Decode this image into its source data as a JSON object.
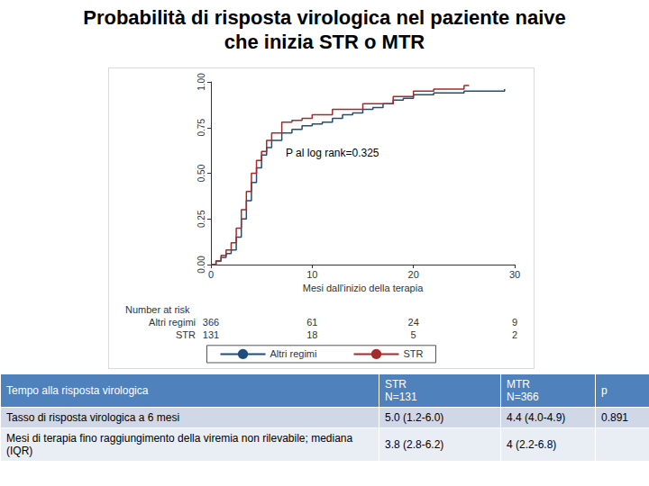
{
  "title": [
    "Probabilità di risposta virologica nel paziente naive",
    "che inizia STR o MTR"
  ],
  "chart_data": {
    "type": "step",
    "x_label": "Mesi dall'inizio della terapia",
    "xlim": [
      0,
      30
    ],
    "xticks": [
      0,
      10,
      20,
      30
    ],
    "ylim": [
      0,
      1
    ],
    "yticks": [
      {
        "value": 0,
        "label": "0.00"
      },
      {
        "value": 0.25,
        "label": "0.25"
      },
      {
        "value": 0.5,
        "label": "0.50"
      },
      {
        "value": 0.75,
        "label": "0.75"
      },
      {
        "value": 1,
        "label": "1.00"
      }
    ],
    "grid": false,
    "legend": "bottom",
    "annotation": "P al log rank=0.325",
    "series": [
      {
        "name": "Altri regimi",
        "color": "#1f4e79",
        "x": [
          0,
          0.5,
          1,
          1.5,
          2,
          2.5,
          3,
          3.5,
          4,
          4.5,
          5,
          5.5,
          6,
          7,
          8,
          9,
          10,
          11,
          12,
          13,
          14,
          15,
          16,
          17,
          18,
          19,
          20,
          22,
          25,
          29
        ],
        "values": [
          0,
          0.02,
          0.04,
          0.06,
          0.08,
          0.15,
          0.25,
          0.35,
          0.45,
          0.53,
          0.6,
          0.64,
          0.68,
          0.72,
          0.74,
          0.76,
          0.77,
          0.78,
          0.8,
          0.82,
          0.83,
          0.85,
          0.86,
          0.88,
          0.9,
          0.91,
          0.93,
          0.94,
          0.95,
          0.96
        ]
      },
      {
        "name": "STR",
        "color": "#a52a2a",
        "x": [
          0,
          0.5,
          1,
          1.5,
          2,
          2.5,
          3,
          3.5,
          4,
          4.5,
          5,
          5.5,
          6,
          7,
          8,
          9,
          10,
          12,
          15,
          18,
          20,
          22,
          25,
          25.5
        ],
        "values": [
          0,
          0.02,
          0.05,
          0.08,
          0.12,
          0.2,
          0.3,
          0.4,
          0.5,
          0.57,
          0.62,
          0.68,
          0.72,
          0.78,
          0.79,
          0.8,
          0.82,
          0.85,
          0.88,
          0.92,
          0.95,
          0.96,
          0.98,
          0.98
        ]
      }
    ],
    "at_risk": {
      "title": "Number at risk",
      "x": [
        0,
        10,
        20,
        30
      ],
      "rows": [
        {
          "name": "Altri regimi",
          "values": [
            366,
            61,
            24,
            9
          ]
        },
        {
          "name": "STR",
          "values": [
            131,
            18,
            5,
            2
          ]
        }
      ]
    }
  },
  "table": {
    "header": [
      "Tempo alla risposta virologica",
      "STR\nN=131",
      "MTR\nN=366",
      "p"
    ],
    "rows": [
      [
        "Tasso di risposta virologica a 6 mesi",
        "5.0 (1.2-6.0)",
        "4.4 (4.0-4.9)",
        "0.891"
      ],
      [
        "Mesi di terapia fino raggiungimento della viremia non rilevabile; mediana (IQR)",
        "3.8 (2.8-6.2)",
        "4 (2.2-6.8)",
        null
      ]
    ]
  }
}
